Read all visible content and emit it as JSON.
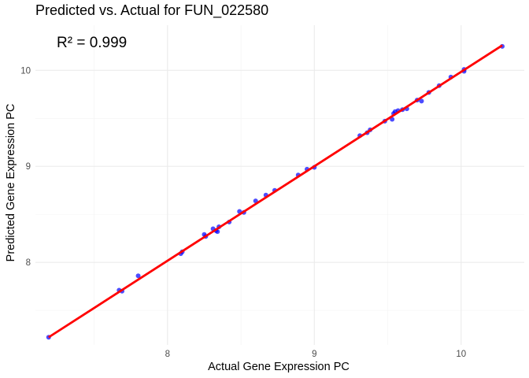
{
  "chart_data": {
    "type": "scatter",
    "title": "Predicted vs. Actual for FUN_022580",
    "xlabel": "Actual Gene Expression PC",
    "ylabel": "Predicted Gene Expression PC",
    "annotation": "R² = 0.999",
    "xlim": [
      7.1,
      10.43
    ],
    "ylim": [
      7.14,
      10.47
    ],
    "x_ticks": [
      8,
      9,
      10
    ],
    "y_ticks": [
      8,
      9,
      10
    ],
    "grid": true,
    "point_color": "#0000ff",
    "line_color": "#ff0000",
    "fit_line": {
      "x": [
        7.19,
        10.28
      ],
      "y": [
        7.22,
        10.26
      ]
    },
    "series": [
      {
        "points": [
          [
            7.19,
            7.22
          ],
          [
            7.67,
            7.71
          ],
          [
            7.69,
            7.7
          ],
          [
            7.8,
            7.86
          ],
          [
            8.09,
            8.09
          ],
          [
            8.1,
            8.11
          ],
          [
            8.25,
            8.29
          ],
          [
            8.26,
            8.27
          ],
          [
            8.31,
            8.35
          ],
          [
            8.33,
            8.33
          ],
          [
            8.34,
            8.32
          ],
          [
            8.35,
            8.37
          ],
          [
            8.42,
            8.42
          ],
          [
            8.49,
            8.53
          ],
          [
            8.52,
            8.52
          ],
          [
            8.6,
            8.64
          ],
          [
            8.67,
            8.7
          ],
          [
            8.73,
            8.75
          ],
          [
            8.89,
            8.91
          ],
          [
            8.95,
            8.97
          ],
          [
            9.0,
            8.99
          ],
          [
            9.31,
            9.32
          ],
          [
            9.36,
            9.35
          ],
          [
            9.38,
            9.38
          ],
          [
            9.48,
            9.47
          ],
          [
            9.53,
            9.49
          ],
          [
            9.54,
            9.55
          ],
          [
            9.55,
            9.57
          ],
          [
            9.57,
            9.58
          ],
          [
            9.6,
            9.59
          ],
          [
            9.63,
            9.6
          ],
          [
            9.7,
            9.69
          ],
          [
            9.73,
            9.68
          ],
          [
            9.78,
            9.77
          ],
          [
            9.85,
            9.84
          ],
          [
            9.93,
            9.93
          ],
          [
            10.02,
            9.99
          ],
          [
            10.02,
            10.01
          ],
          [
            10.28,
            10.25
          ]
        ]
      }
    ]
  }
}
